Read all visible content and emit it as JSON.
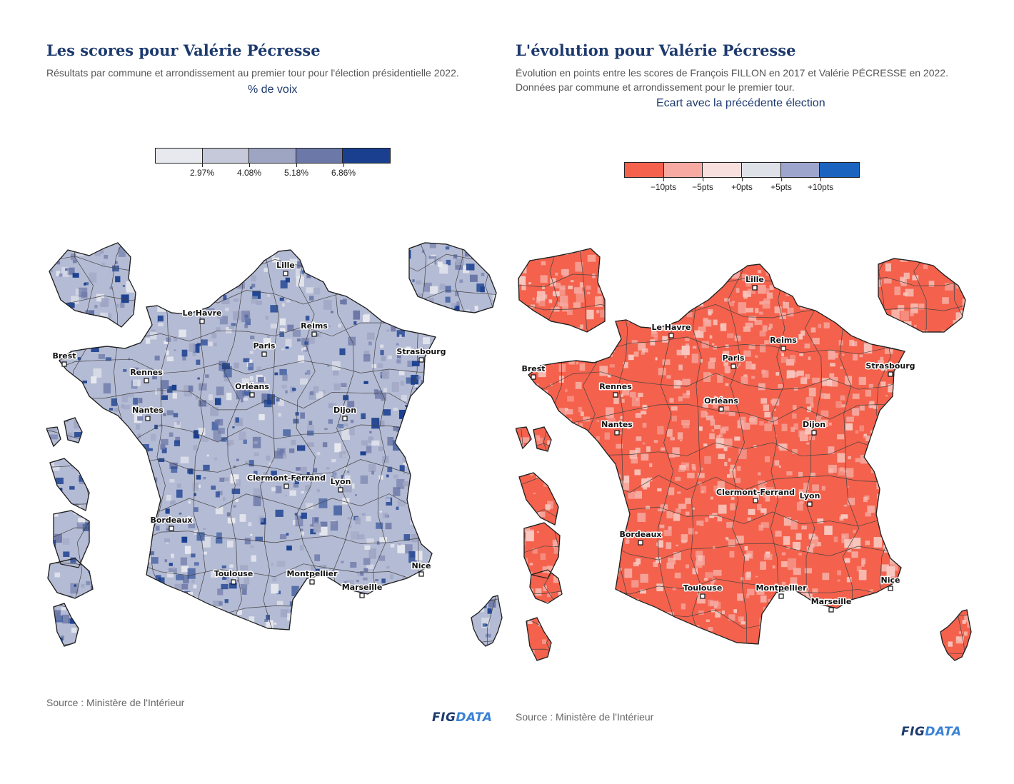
{
  "left": {
    "title": "Les scores pour Valérie Pécresse",
    "subtitle": "Résultats par commune et arrondissement au premier tour pour l'élection présidentielle 2022.",
    "legend_title": "% de voix",
    "legend_colors": [
      "#e8e9ef",
      "#c5c9da",
      "#9ea5c3",
      "#6c78a8",
      "#1a3f8f"
    ],
    "legend_ticks": [
      "2.97%",
      "4.08%",
      "5.18%",
      "6.86%"
    ],
    "map_fill": "#b4bbd4",
    "dot_colors": [
      "#1a3f8f",
      "#6c78a8",
      "#e8e9ef",
      "#9ea5c3"
    ],
    "source": "Source : Ministère de l'Intérieur"
  },
  "right": {
    "title": "L'évolution pour Valérie Pécresse",
    "subtitle": "Évolution en points entre les scores de François FILLON en 2017 et Valérie PÉCRESSE en 2022. Données par commune et arrondissement pour le premier tour.",
    "legend_title": "Ecart avec la précédente élection",
    "legend_colors": [
      "#f4614c",
      "#f6aaa2",
      "#f8e0df",
      "#dfe1e8",
      "#9ea5cc",
      "#1a64c0"
    ],
    "legend_ticks": [
      "−10pts",
      "−5pts",
      "+0pts",
      "+5pts",
      "+10pts"
    ],
    "map_fill": "#f4614c",
    "dot_colors": [
      "#f8c8c0",
      "#f6aaa2"
    ],
    "source": "Source : Ministère de l'Intérieur"
  },
  "cities": [
    {
      "name": "Lille"
    },
    {
      "name": "Le Havre"
    },
    {
      "name": "Reims"
    },
    {
      "name": "Paris"
    },
    {
      "name": "Brest"
    },
    {
      "name": "Strasbourg"
    },
    {
      "name": "Rennes"
    },
    {
      "name": "Orléans"
    },
    {
      "name": "Nantes"
    },
    {
      "name": "Dijon"
    },
    {
      "name": "Clermont-Ferrand"
    },
    {
      "name": "Lyon"
    },
    {
      "name": "Bordeaux"
    },
    {
      "name": "Toulouse"
    },
    {
      "name": "Montpellier"
    },
    {
      "name": "Nice"
    },
    {
      "name": "Marseille"
    }
  ],
  "logo": {
    "fig": "FIG",
    "data": "DATA"
  }
}
